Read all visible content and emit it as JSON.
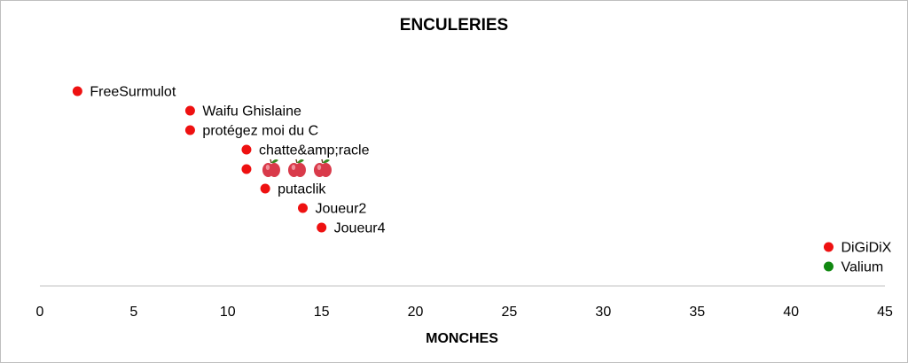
{
  "chart_data": {
    "type": "scatter",
    "title": "ENCULERIES",
    "xlabel": "MONCHES",
    "ylabel": "",
    "xlim": [
      0,
      45
    ],
    "xticks": [
      "0",
      "5",
      "10",
      "15",
      "20",
      "25",
      "30",
      "35",
      "40",
      "45"
    ],
    "grid": false,
    "legend": "none",
    "colors": {
      "red": "#ee1111",
      "green": "#118811",
      "apple": "#d93a4a",
      "leaf": "#3a8a22"
    },
    "points": [
      {
        "x": 2,
        "label": "FreeSurmulot",
        "color": "red"
      },
      {
        "x": 8,
        "label": "Waifu Ghislaine",
        "color": "red"
      },
      {
        "x": 8,
        "label": "protégez moi du C",
        "color": "red"
      },
      {
        "x": 11,
        "label": "chatte&amp;racle",
        "color": "red"
      },
      {
        "x": 11,
        "label": "",
        "icons": [
          "apple-icon",
          "apple-icon",
          "apple-icon"
        ],
        "color": "red"
      },
      {
        "x": 12,
        "label": "putaclik",
        "color": "red"
      },
      {
        "x": 14,
        "label": "Joueur2",
        "color": "red"
      },
      {
        "x": 15,
        "label": "Joueur4",
        "color": "red"
      },
      {
        "x": 42,
        "label": "DiGiDiX",
        "color": "red"
      },
      {
        "x": 42,
        "label": "Valium",
        "color": "green"
      }
    ]
  }
}
